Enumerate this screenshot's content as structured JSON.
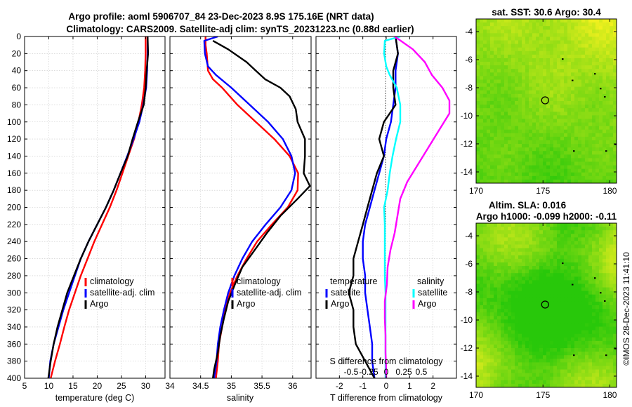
{
  "figure": {
    "title_line1": "Argo profile: aoml 5906707_84 23-Dec-2023 8.9S 175.16E (NRT data)",
    "title_line2": "Climatology: CARS2009. Satellite-adj clim: synTS_20231223.nc (0.88d earlier)",
    "credit": "©IMOS 28-Dec-2023 11:41:10"
  },
  "colors": {
    "climatology": "#ff0000",
    "satellite": "#0000ff",
    "argo": "#000000",
    "t_sat": "#0000ff",
    "t_argo": "#000000",
    "s_sat": "#00ffff",
    "s_argo": "#ff00ff"
  },
  "chart_data": [
    {
      "id": "temperature",
      "type": "line",
      "xlabel": "temperature (deg C)",
      "xlim": [
        5,
        34
      ],
      "xticks": [
        "5",
        "10",
        "15",
        "20",
        "25",
        "30"
      ],
      "ylim": [
        400,
        0
      ],
      "yticks": [
        "0",
        "20",
        "40",
        "60",
        "80",
        "100",
        "120",
        "140",
        "160",
        "180",
        "200",
        "220",
        "240",
        "260",
        "280",
        "300",
        "320",
        "340",
        "360",
        "380",
        "400"
      ],
      "legend": {
        "position": "center-right",
        "labels": [
          "climatology",
          "satellite-adj. clim",
          "Argo"
        ]
      },
      "series": [
        {
          "name": "climatology",
          "color_key": "climatology",
          "points": [
            [
              30.0,
              0
            ],
            [
              30.0,
              20
            ],
            [
              29.9,
              40
            ],
            [
              29.7,
              60
            ],
            [
              29.2,
              80
            ],
            [
              28.5,
              100
            ],
            [
              27.6,
              120
            ],
            [
              26.4,
              140
            ],
            [
              25.2,
              160
            ],
            [
              24.0,
              180
            ],
            [
              22.6,
              200
            ],
            [
              21.0,
              220
            ],
            [
              19.4,
              240
            ],
            [
              18.0,
              260
            ],
            [
              16.6,
              280
            ],
            [
              15.4,
              300
            ],
            [
              14.2,
              320
            ],
            [
              13.2,
              340
            ],
            [
              12.3,
              360
            ],
            [
              11.3,
              380
            ],
            [
              10.4,
              400
            ]
          ]
        },
        {
          "name": "satellite-adj. clim",
          "color_key": "satellite",
          "points": [
            [
              30.4,
              0
            ],
            [
              30.4,
              20
            ],
            [
              30.3,
              40
            ],
            [
              30.1,
              60
            ],
            [
              29.5,
              80
            ],
            [
              28.7,
              100
            ],
            [
              27.5,
              120
            ],
            [
              26.2,
              140
            ],
            [
              24.8,
              160
            ],
            [
              23.4,
              180
            ],
            [
              21.8,
              200
            ],
            [
              20.0,
              220
            ],
            [
              18.2,
              240
            ],
            [
              16.6,
              260
            ],
            [
              15.4,
              280
            ],
            [
              14.2,
              300
            ],
            [
              13.0,
              320
            ],
            [
              12.0,
              340
            ],
            [
              11.0,
              360
            ],
            [
              10.3,
              380
            ],
            [
              10.0,
              400
            ]
          ]
        },
        {
          "name": "Argo",
          "color_key": "argo",
          "points": [
            [
              30.4,
              0
            ],
            [
              30.5,
              20
            ],
            [
              30.2,
              40
            ],
            [
              30.0,
              60
            ],
            [
              29.6,
              80
            ],
            [
              28.4,
              100
            ],
            [
              27.3,
              120
            ],
            [
              26.3,
              140
            ],
            [
              24.8,
              160
            ],
            [
              23.4,
              180
            ],
            [
              21.8,
              200
            ],
            [
              20.0,
              220
            ],
            [
              18.2,
              240
            ],
            [
              16.6,
              260
            ],
            [
              15.2,
              280
            ],
            [
              13.8,
              300
            ],
            [
              12.8,
              320
            ],
            [
              11.8,
              340
            ],
            [
              11.0,
              360
            ],
            [
              10.4,
              380
            ],
            [
              9.9,
              400
            ]
          ]
        }
      ]
    },
    {
      "id": "salinity",
      "type": "line",
      "xlabel": "salinity",
      "xlim": [
        34,
        36.3
      ],
      "xticks": [
        "34",
        "34.5",
        "35",
        "35.5",
        "36"
      ],
      "ylim": [
        400,
        0
      ],
      "legend": {
        "position": "center-right",
        "labels": [
          "climatology",
          "satellite-adj. clim",
          "Argo"
        ]
      },
      "series": [
        {
          "name": "climatology",
          "color_key": "climatology",
          "points": [
            [
              34.58,
              0
            ],
            [
              34.58,
              10
            ],
            [
              34.6,
              20
            ],
            [
              34.62,
              40
            ],
            [
              34.7,
              50
            ],
            [
              34.85,
              60
            ],
            [
              35.1,
              80
            ],
            [
              35.4,
              100
            ],
            [
              35.7,
              120
            ],
            [
              35.95,
              140
            ],
            [
              36.09,
              160
            ],
            [
              36.08,
              180
            ],
            [
              35.92,
              200
            ],
            [
              35.66,
              220
            ],
            [
              35.42,
              240
            ],
            [
              35.25,
              260
            ],
            [
              35.1,
              280
            ],
            [
              34.98,
              300
            ],
            [
              34.9,
              320
            ],
            [
              34.85,
              340
            ],
            [
              34.8,
              360
            ],
            [
              34.78,
              380
            ],
            [
              34.75,
              400
            ]
          ]
        },
        {
          "name": "satellite-adj. clim",
          "color_key": "satellite",
          "points": [
            [
              34.78,
              0
            ],
            [
              34.56,
              5
            ],
            [
              34.57,
              20
            ],
            [
              34.62,
              35
            ],
            [
              34.75,
              45
            ],
            [
              35.0,
              60
            ],
            [
              35.3,
              80
            ],
            [
              35.6,
              100
            ],
            [
              35.84,
              120
            ],
            [
              35.98,
              140
            ],
            [
              36.04,
              160
            ],
            [
              35.98,
              180
            ],
            [
              35.8,
              200
            ],
            [
              35.56,
              220
            ],
            [
              35.34,
              240
            ],
            [
              35.18,
              260
            ],
            [
              35.05,
              280
            ],
            [
              34.95,
              300
            ],
            [
              34.88,
              320
            ],
            [
              34.82,
              340
            ],
            [
              34.78,
              360
            ],
            [
              34.76,
              380
            ],
            [
              34.72,
              400
            ]
          ]
        },
        {
          "name": "Argo",
          "color_key": "argo",
          "points": [
            [
              34.7,
              5
            ],
            [
              34.95,
              15
            ],
            [
              35.25,
              30
            ],
            [
              35.4,
              40
            ],
            [
              35.55,
              50
            ],
            [
              35.8,
              60
            ],
            [
              35.95,
              70
            ],
            [
              36.05,
              85
            ],
            [
              36.08,
              100
            ],
            [
              36.2,
              120
            ],
            [
              36.2,
              140
            ],
            [
              36.18,
              160
            ],
            [
              36.28,
              175
            ],
            [
              36.08,
              190
            ],
            [
              35.8,
              210
            ],
            [
              35.58,
              230
            ],
            [
              35.38,
              250
            ],
            [
              35.18,
              270
            ],
            [
              35.06,
              290
            ],
            [
              34.95,
              310
            ],
            [
              34.88,
              330
            ],
            [
              34.82,
              350
            ],
            [
              34.78,
              370
            ],
            [
              34.72,
              390
            ],
            [
              34.7,
              400
            ]
          ]
        }
      ]
    },
    {
      "id": "difference",
      "type": "line",
      "xlabel": "T difference from climatology",
      "xlim": [
        -3,
        3
      ],
      "xticks": [
        "-2",
        "-1",
        "0",
        "1",
        "2"
      ],
      "top_label": "S difference from climatology",
      "top_ticks": [
        "-0.5",
        "-0.25",
        "0",
        "0.25",
        "0.5"
      ],
      "ylim": [
        400,
        0
      ],
      "legend": {
        "position": "center",
        "temperature_title": "temperature",
        "salinity_title": "salinity",
        "temperature_labels": [
          "satellite",
          "Argo"
        ],
        "salinity_labels": [
          "satellite",
          "Argo"
        ]
      },
      "series": [
        {
          "name": "T satellite",
          "color_key": "t_sat",
          "points": [
            [
              0.4,
              0
            ],
            [
              0.5,
              20
            ],
            [
              0.4,
              40
            ],
            [
              0.4,
              60
            ],
            [
              0.3,
              80
            ],
            [
              0.2,
              100
            ],
            [
              0.0,
              120
            ],
            [
              -0.1,
              140
            ],
            [
              -0.3,
              160
            ],
            [
              -0.5,
              180
            ],
            [
              -0.7,
              200
            ],
            [
              -0.9,
              220
            ],
            [
              -1.0,
              240
            ],
            [
              -1.0,
              260
            ],
            [
              -0.9,
              280
            ],
            [
              -0.9,
              300
            ],
            [
              -0.8,
              320
            ],
            [
              -0.7,
              340
            ],
            [
              -0.6,
              360
            ],
            [
              -0.6,
              380
            ],
            [
              -0.5,
              400
            ]
          ]
        },
        {
          "name": "T Argo",
          "color_key": "t_argo",
          "points": [
            [
              0.4,
              0
            ],
            [
              0.5,
              20
            ],
            [
              0.3,
              40
            ],
            [
              0.3,
              60
            ],
            [
              0.4,
              80
            ],
            [
              -0.1,
              100
            ],
            [
              -0.3,
              120
            ],
            [
              -0.1,
              140
            ],
            [
              -0.4,
              160
            ],
            [
              -0.6,
              180
            ],
            [
              -0.8,
              200
            ],
            [
              -1.0,
              220
            ],
            [
              -1.2,
              240
            ],
            [
              -1.4,
              260
            ],
            [
              -1.4,
              280
            ],
            [
              -1.6,
              300
            ],
            [
              -1.4,
              320
            ],
            [
              -1.4,
              340
            ],
            [
              -1.3,
              360
            ],
            [
              -0.9,
              380
            ],
            [
              -0.5,
              400
            ]
          ]
        },
        {
          "name": "S satellite",
          "color_key": "s_sat",
          "points": [
            [
              0.2,
              0
            ],
            [
              -0.02,
              5
            ],
            [
              -0.03,
              20
            ],
            [
              0.0,
              35
            ],
            [
              0.05,
              45
            ],
            [
              0.15,
              60
            ],
            [
              0.2,
              80
            ],
            [
              0.2,
              100
            ],
            [
              0.14,
              120
            ],
            [
              0.09,
              140
            ],
            [
              0.05,
              160
            ],
            [
              0.02,
              180
            ],
            [
              -0.03,
              200
            ],
            [
              -0.02,
              220
            ],
            [
              -0.02,
              240
            ],
            [
              -0.02,
              260
            ],
            [
              -0.02,
              280
            ],
            [
              -0.01,
              300
            ],
            [
              -0.01,
              320
            ],
            [
              -0.01,
              340
            ],
            [
              -0.01,
              360
            ],
            [
              -0.01,
              380
            ],
            [
              -0.01,
              400
            ]
          ]
        },
        {
          "name": "S Argo",
          "color_key": "s_argo",
          "points": [
            [
              0.12,
              0
            ],
            [
              0.38,
              15
            ],
            [
              0.55,
              30
            ],
            [
              0.65,
              45
            ],
            [
              0.8,
              60
            ],
            [
              0.9,
              75
            ],
            [
              0.9,
              90
            ],
            [
              0.75,
              110
            ],
            [
              0.6,
              130
            ],
            [
              0.45,
              150
            ],
            [
              0.3,
              170
            ],
            [
              0.2,
              190
            ],
            [
              0.16,
              210
            ],
            [
              0.12,
              230
            ],
            [
              0.06,
              250
            ],
            [
              0.02,
              270
            ],
            [
              0.01,
              290
            ],
            [
              -0.02,
              310
            ],
            [
              -0.02,
              330
            ],
            [
              -0.01,
              350
            ],
            [
              -0.01,
              370
            ],
            [
              0.0,
              390
            ],
            [
              0.0,
              400
            ]
          ]
        }
      ]
    },
    {
      "id": "sat_sst_map",
      "type": "heatmap",
      "title": "sat. SST: 30.6 Argo: 30.4",
      "xlim": [
        170,
        180.5
      ],
      "ylim": [
        -14.8,
        -3.1
      ],
      "xticks": [
        "170",
        "175",
        "180"
      ],
      "yticks": [
        "-4",
        "-6",
        "-8",
        "-10",
        "-12",
        "-14"
      ],
      "marker": {
        "lon": 175.16,
        "lat": -8.9
      }
    },
    {
      "id": "altim_sla_map",
      "type": "heatmap",
      "title_line1": "Altim. SLA: 0.016",
      "title_line2": "Argo h1000: -0.099 h2000: -0.11",
      "xlim": [
        170,
        180.5
      ],
      "ylim": [
        -14.8,
        -3.1
      ],
      "xticks": [
        "170",
        "175",
        "180"
      ],
      "yticks": [
        "-4",
        "-6",
        "-8",
        "-10",
        "-12",
        "-14"
      ],
      "marker": {
        "lon": 175.16,
        "lat": -8.9
      }
    }
  ]
}
